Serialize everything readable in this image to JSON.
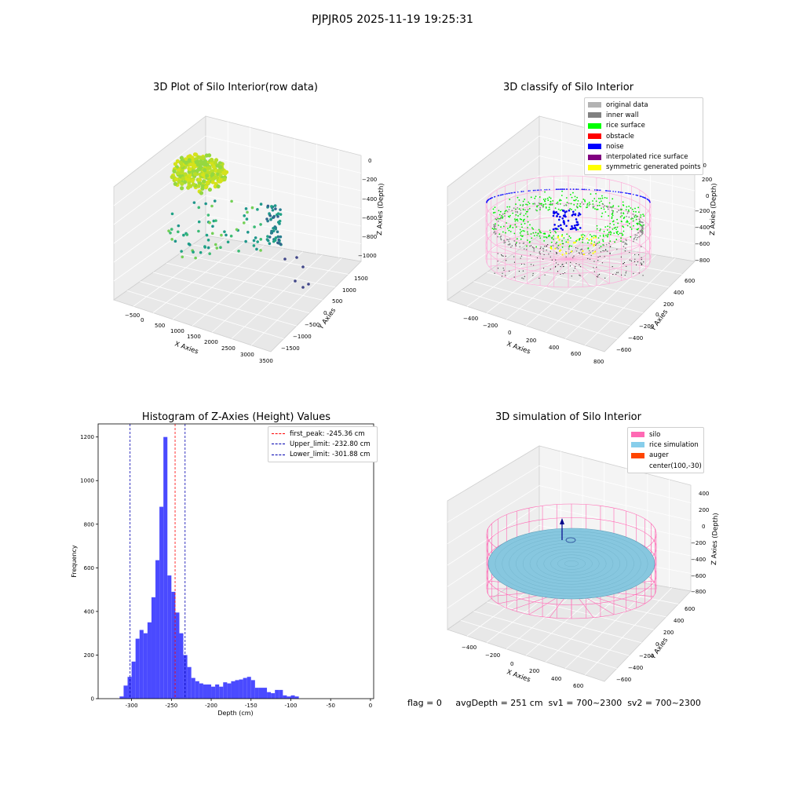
{
  "figure": {
    "title": "PJPJR05 2025-11-19 19:25:31"
  },
  "status_line": "flag = 0     avgDepth = 251 cm  sv1 = 700~2300  sv2 = 700~2300",
  "chart_data": [
    {
      "type": "scatter",
      "projection": "3d",
      "title": "3D Plot of Silo Interior(row data)",
      "xlabel": "X Axies",
      "ylabel": "Y Axies",
      "zlabel": "Z Axies (Depth)",
      "xticks": [
        "−500",
        "0",
        "500",
        "1000",
        "1500",
        "2000",
        "2500",
        "3000",
        "3500"
      ],
      "yticks": [
        "1500",
        "1000",
        "500",
        "0",
        "−500",
        "−1000",
        "−1500"
      ],
      "zticks": [
        "0",
        "−200",
        "−400",
        "−600",
        "−800",
        "−1000"
      ],
      "colormap": "viridis (by depth)",
      "grid": true
    },
    {
      "type": "scatter",
      "projection": "3d",
      "title": "3D classify of Silo Interior",
      "xlabel": "X Axies",
      "ylabel": "Y Axies",
      "zlabel": "Z Axies (Depth)",
      "xticks": [
        "−400",
        "−200",
        "0",
        "200",
        "400",
        "600",
        "800"
      ],
      "yticks": [
        "600",
        "400",
        "200",
        "0",
        "−200",
        "−400",
        "−600"
      ],
      "zticks": [
        "200",
        "0",
        "−200",
        "−400",
        "−600",
        "−800"
      ],
      "legend_position": "upper-right",
      "legend": [
        {
          "label": "original data",
          "color": "#b3b3b3"
        },
        {
          "label": "inner wall",
          "color": "#808080"
        },
        {
          "label": "rice surface",
          "color": "#00ff00"
        },
        {
          "label": "obstacle",
          "color": "#ff0000"
        },
        {
          "label": "noise",
          "color": "#0000ff"
        },
        {
          "label": "interpolated rice surface",
          "color": "#800080"
        },
        {
          "label": "symmetric generated points",
          "color": "#ffff00"
        }
      ],
      "ztick_overlap": "00",
      "grid": true
    },
    {
      "type": "bar",
      "subtype": "histogram",
      "title": "Histogram of Z-Axies (Height) Values",
      "xlabel": "Depth (cm)",
      "ylabel": "Frequency",
      "xlim": [
        -342,
        4
      ],
      "ylim": [
        0,
        1260
      ],
      "xticks": [
        -300,
        -250,
        -200,
        -150,
        -100,
        -50,
        0
      ],
      "yticks": [
        0,
        200,
        400,
        600,
        800,
        1000,
        1200
      ],
      "bin_width": 5,
      "bin_start": -315,
      "counts": [
        10,
        60,
        100,
        170,
        275,
        315,
        300,
        350,
        465,
        635,
        880,
        1200,
        565,
        490,
        395,
        300,
        200,
        145,
        95,
        80,
        70,
        65,
        65,
        55,
        65,
        55,
        75,
        70,
        80,
        85,
        88,
        95,
        100,
        85,
        50,
        50,
        50,
        30,
        25,
        40,
        40,
        15,
        10,
        15,
        10
      ],
      "bar_color": "#4a4aff",
      "legend_position": "upper-right",
      "lines": [
        {
          "label": "first_peak: -245.36 cm",
          "x": -245.36,
          "color": "#ff0000"
        },
        {
          "label": "Upper_limit: -232.80 cm",
          "x": -232.8,
          "color": "#0000b0"
        },
        {
          "label": "Lower_limit: -301.88 cm",
          "x": -301.88,
          "color": "#0000b0"
        }
      ]
    },
    {
      "type": "area",
      "projection": "3d",
      "title": "3D simulation of Silo Interior",
      "xlabel": "X Axies",
      "ylabel": "Y Axies",
      "zlabel": "Z Axies (Depth)",
      "xticks": [
        "−400",
        "−200",
        "0",
        "200",
        "400",
        "600"
      ],
      "yticks": [
        "600",
        "400",
        "200",
        "0",
        "−200",
        "−400",
        "−600"
      ],
      "zticks": [
        "400",
        "200",
        "0",
        "−200",
        "−400",
        "−600",
        "−800"
      ],
      "legend_position": "upper-right",
      "legend": [
        {
          "label": "silo",
          "color": "#ff69b4"
        },
        {
          "label": "rice simulation",
          "color": "#87ceeb"
        },
        {
          "label": "auger",
          "color": "#ff4500"
        },
        {
          "label": "center(100,-30)",
          "color": ""
        }
      ],
      "grid": true
    }
  ]
}
